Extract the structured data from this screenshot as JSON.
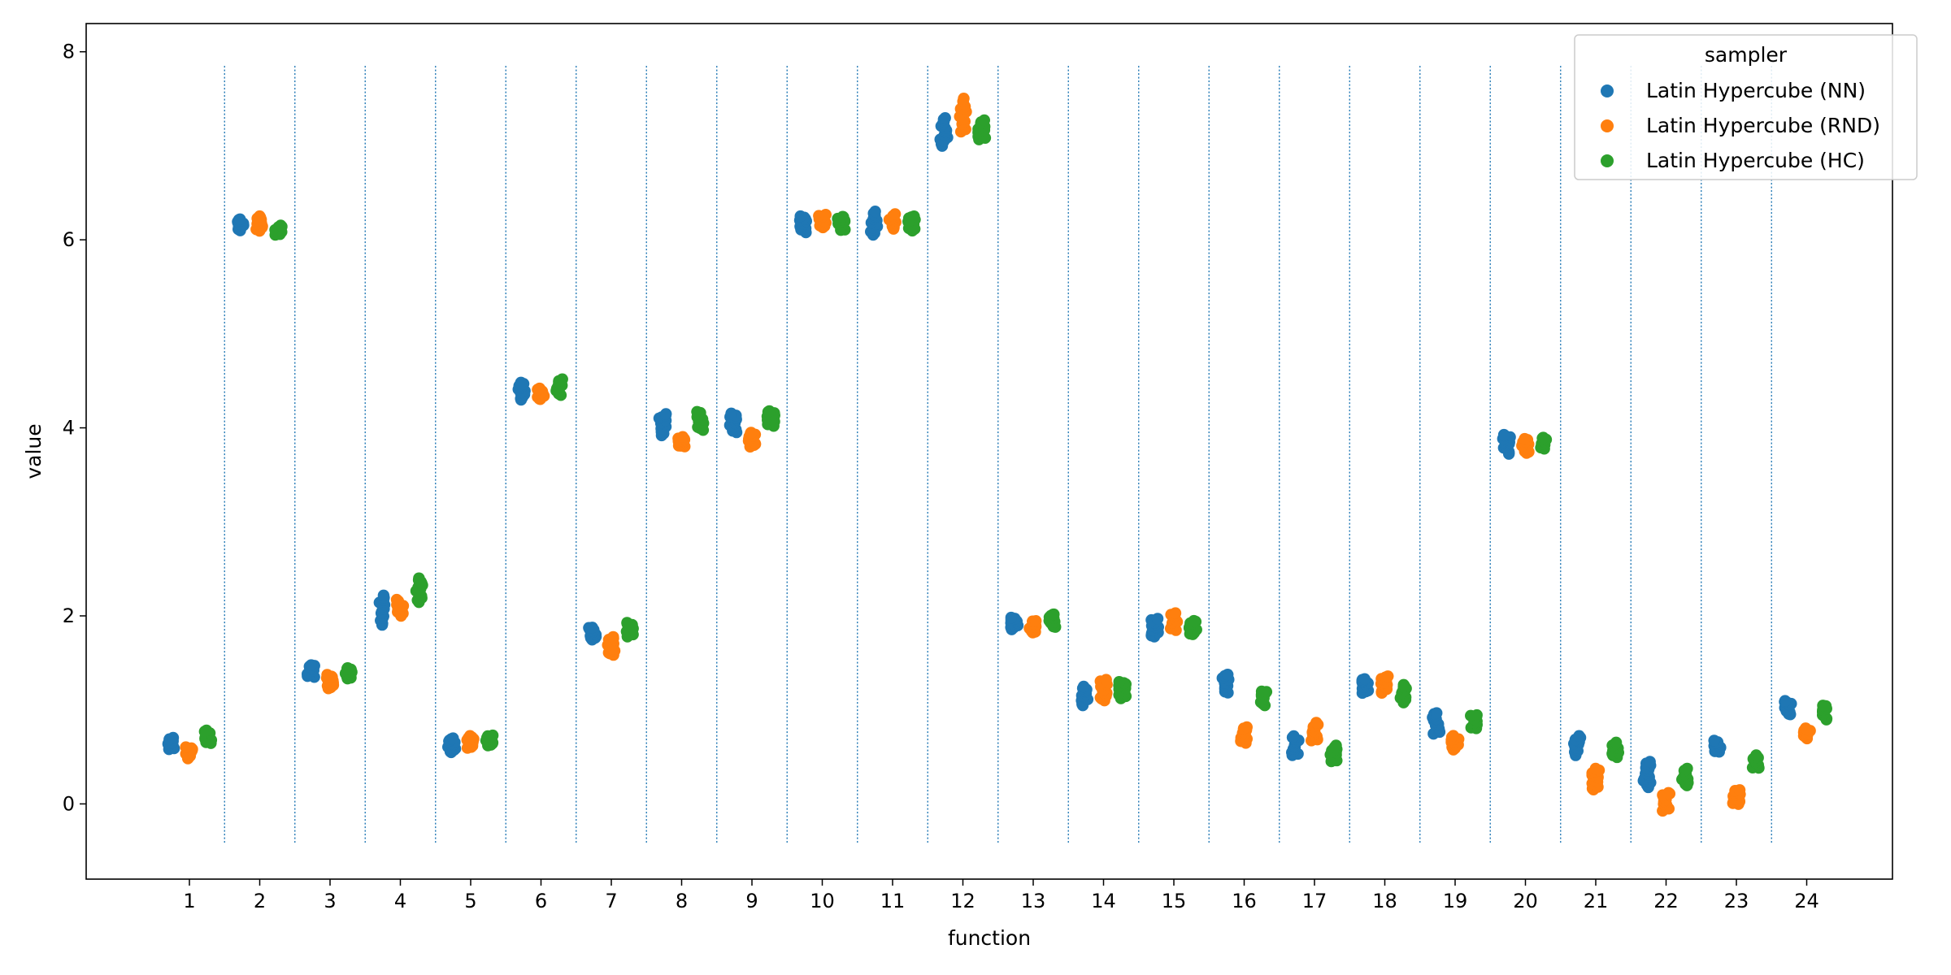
{
  "chart_data": {
    "type": "scatter",
    "subtype": "strip",
    "xlabel": "function",
    "ylabel": "value",
    "categories": [
      "1",
      "2",
      "3",
      "4",
      "5",
      "6",
      "7",
      "8",
      "9",
      "10",
      "11",
      "12",
      "13",
      "14",
      "15",
      "16",
      "17",
      "18",
      "19",
      "20",
      "21",
      "22",
      "23",
      "24"
    ],
    "yticks": [
      "0",
      "2",
      "4",
      "6",
      "8"
    ],
    "ylim": [
      -0.8,
      8.3
    ],
    "category_separators": "dotted vertical lines between categories",
    "legend": {
      "title": "sampler",
      "placement": "top-right"
    },
    "series": [
      {
        "name": "Latin Hypercube (NN)",
        "color": "#1f77b4",
        "ranges": [
          [
            0.58,
            0.7
          ],
          [
            6.1,
            6.22
          ],
          [
            1.35,
            1.48
          ],
          [
            1.9,
            2.22
          ],
          [
            0.55,
            0.7
          ],
          [
            4.3,
            4.48
          ],
          [
            1.75,
            1.88
          ],
          [
            3.92,
            4.15
          ],
          [
            3.95,
            4.15
          ],
          [
            6.08,
            6.25
          ],
          [
            6.05,
            6.3
          ],
          [
            7.0,
            7.3
          ],
          [
            1.86,
            1.98
          ],
          [
            1.05,
            1.25
          ],
          [
            1.78,
            1.97
          ],
          [
            1.18,
            1.38
          ],
          [
            0.52,
            0.72
          ],
          [
            1.18,
            1.33
          ],
          [
            0.75,
            0.97
          ],
          [
            3.72,
            3.93
          ],
          [
            0.52,
            0.72
          ],
          [
            0.18,
            0.45
          ],
          [
            0.55,
            0.67
          ],
          [
            0.95,
            1.1
          ]
        ]
      },
      {
        "name": "Latin Hypercube (RND)",
        "color": "#ff7f0e",
        "ranges": [
          [
            0.48,
            0.6
          ],
          [
            6.1,
            6.25
          ],
          [
            1.23,
            1.37
          ],
          [
            2.0,
            2.17
          ],
          [
            0.6,
            0.72
          ],
          [
            4.3,
            4.42
          ],
          [
            1.58,
            1.78
          ],
          [
            3.8,
            3.9
          ],
          [
            3.8,
            3.95
          ],
          [
            6.13,
            6.27
          ],
          [
            6.12,
            6.27
          ],
          [
            7.15,
            7.5
          ],
          [
            1.82,
            1.95
          ],
          [
            1.1,
            1.32
          ],
          [
            1.85,
            2.03
          ],
          [
            0.65,
            0.82
          ],
          [
            0.67,
            0.86
          ],
          [
            1.18,
            1.36
          ],
          [
            0.58,
            0.72
          ],
          [
            3.73,
            3.88
          ],
          [
            0.15,
            0.38
          ],
          [
            -0.07,
            0.12
          ],
          [
            0.0,
            0.15
          ],
          [
            0.7,
            0.8
          ]
        ]
      },
      {
        "name": "Latin Hypercube (HC)",
        "color": "#2ca02c",
        "ranges": [
          [
            0.65,
            0.78
          ],
          [
            6.05,
            6.15
          ],
          [
            1.33,
            1.45
          ],
          [
            2.15,
            2.4
          ],
          [
            0.62,
            0.73
          ],
          [
            4.35,
            4.52
          ],
          [
            1.78,
            1.93
          ],
          [
            3.98,
            4.17
          ],
          [
            4.02,
            4.18
          ],
          [
            6.1,
            6.25
          ],
          [
            6.1,
            6.25
          ],
          [
            7.07,
            7.27
          ],
          [
            1.88,
            2.02
          ],
          [
            1.12,
            1.3
          ],
          [
            1.8,
            1.95
          ],
          [
            1.05,
            1.2
          ],
          [
            0.45,
            0.62
          ],
          [
            1.08,
            1.27
          ],
          [
            0.8,
            0.95
          ],
          [
            3.78,
            3.9
          ],
          [
            0.5,
            0.65
          ],
          [
            0.2,
            0.38
          ],
          [
            0.38,
            0.52
          ],
          [
            0.9,
            1.05
          ]
        ]
      }
    ]
  }
}
